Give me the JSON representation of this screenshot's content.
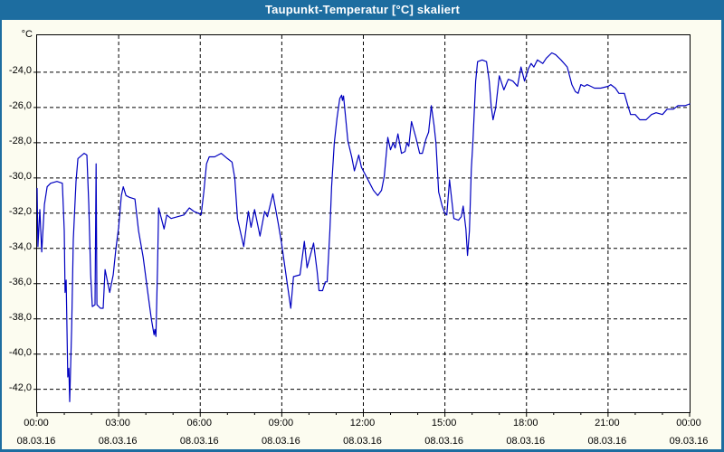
{
  "window": {
    "title": "Taupunkt-Temperatur [°C] skaliert"
  },
  "colors": {
    "titlebar_bg": "#1d6da0",
    "titlebar_text": "#ffffff",
    "window_bg": "#fcfcf0",
    "plot_bg": "#ffffff",
    "line": "#0000c0",
    "grid": "#000000",
    "axis": "#000000"
  },
  "chart_data": {
    "type": "line",
    "title": "Taupunkt-Temperatur [°C] skaliert",
    "grid": "dashed",
    "legend": "none",
    "y_axis": {
      "unit_label": "°C",
      "ylim": [
        -43.3,
        -21.9
      ],
      "ticks": [
        {
          "label": "-24,0",
          "value": -24
        },
        {
          "label": "-26,0",
          "value": -26
        },
        {
          "label": "-28,0",
          "value": -28
        },
        {
          "label": "-30,0",
          "value": -30
        },
        {
          "label": "-32,0",
          "value": -32
        },
        {
          "label": "-34,0",
          "value": -34
        },
        {
          "label": "-36,0",
          "value": -36
        },
        {
          "label": "-38,0",
          "value": -38
        },
        {
          "label": "-40,0",
          "value": -40
        },
        {
          "label": "-42,0",
          "value": -42
        }
      ]
    },
    "x_axis": {
      "hours_span": 24,
      "major_tick_hours": 3,
      "minor_tick_hours": 1,
      "ticks": [
        {
          "hour": 0,
          "time": "00:00",
          "date": "08.03.16"
        },
        {
          "hour": 3,
          "time": "03:00",
          "date": "08.03.16"
        },
        {
          "hour": 6,
          "time": "06:00",
          "date": "08.03.16"
        },
        {
          "hour": 9,
          "time": "09:00",
          "date": "08.03.16"
        },
        {
          "hour": 12,
          "time": "12:00",
          "date": "08.03.16"
        },
        {
          "hour": 15,
          "time": "15:00",
          "date": "08.03.16"
        },
        {
          "hour": 18,
          "time": "18:00",
          "date": "08.03.16"
        },
        {
          "hour": 21,
          "time": "21:00",
          "date": "08.03.16"
        },
        {
          "hour": 24,
          "time": "00:00",
          "date": "09.03.16"
        }
      ]
    },
    "series": [
      {
        "name": "Taupunkt-Temperatur",
        "color": "#0000c0",
        "points": [
          [
            0,
            -30.6
          ],
          [
            0.03,
            -33.9
          ],
          [
            0.1,
            -31.8
          ],
          [
            0.17,
            -34.2
          ],
          [
            0.27,
            -31.5
          ],
          [
            0.37,
            -30.5
          ],
          [
            0.5,
            -30.3
          ],
          [
            0.73,
            -30.2
          ],
          [
            0.93,
            -30.3
          ],
          [
            1.0,
            -33.0
          ],
          [
            1.03,
            -36.5
          ],
          [
            1.07,
            -35.8
          ],
          [
            1.13,
            -41.3
          ],
          [
            1.17,
            -40.8
          ],
          [
            1.2,
            -42.7
          ],
          [
            1.27,
            -38.5
          ],
          [
            1.33,
            -33.5
          ],
          [
            1.43,
            -30.2
          ],
          [
            1.5,
            -28.9
          ],
          [
            1.73,
            -28.6
          ],
          [
            1.83,
            -28.7
          ],
          [
            1.9,
            -31.5
          ],
          [
            1.97,
            -35.5
          ],
          [
            2.03,
            -37.3
          ],
          [
            2.13,
            -37.2
          ],
          [
            2.17,
            -29.2
          ],
          [
            2.2,
            -37.2
          ],
          [
            2.33,
            -37.4
          ],
          [
            2.43,
            -37.4
          ],
          [
            2.5,
            -35.2
          ],
          [
            2.67,
            -36.5
          ],
          [
            2.8,
            -35.5
          ],
          [
            2.9,
            -34.0
          ],
          [
            3.0,
            -32.8
          ],
          [
            3.1,
            -31.0
          ],
          [
            3.17,
            -30.5
          ],
          [
            3.27,
            -31.0
          ],
          [
            3.4,
            -31.1
          ],
          [
            3.6,
            -31.2
          ],
          [
            3.73,
            -33.0
          ],
          [
            3.9,
            -34.5
          ],
          [
            4.07,
            -36.5
          ],
          [
            4.2,
            -38.0
          ],
          [
            4.3,
            -38.9
          ],
          [
            4.33,
            -38.6
          ],
          [
            4.37,
            -39.0
          ],
          [
            4.43,
            -35.0
          ],
          [
            4.47,
            -31.7
          ],
          [
            4.57,
            -32.3
          ],
          [
            4.67,
            -32.9
          ],
          [
            4.77,
            -32.1
          ],
          [
            4.93,
            -32.3
          ],
          [
            5.17,
            -32.2
          ],
          [
            5.4,
            -32.1
          ],
          [
            5.6,
            -31.7
          ],
          [
            5.77,
            -31.9
          ],
          [
            5.93,
            -32.0
          ],
          [
            6.03,
            -32.1
          ],
          [
            6.13,
            -30.8
          ],
          [
            6.23,
            -29.2
          ],
          [
            6.33,
            -28.8
          ],
          [
            6.53,
            -28.8
          ],
          [
            6.77,
            -28.6
          ],
          [
            7.0,
            -28.9
          ],
          [
            7.17,
            -29.1
          ],
          [
            7.27,
            -30.0
          ],
          [
            7.37,
            -32.3
          ],
          [
            7.47,
            -33.0
          ],
          [
            7.6,
            -33.9
          ],
          [
            7.77,
            -31.9
          ],
          [
            7.87,
            -32.8
          ],
          [
            8.0,
            -31.8
          ],
          [
            8.2,
            -33.3
          ],
          [
            8.37,
            -31.9
          ],
          [
            8.47,
            -32.2
          ],
          [
            8.67,
            -30.9
          ],
          [
            8.87,
            -32.6
          ],
          [
            9.0,
            -33.8
          ],
          [
            9.2,
            -36.0
          ],
          [
            9.33,
            -37.4
          ],
          [
            9.43,
            -35.6
          ],
          [
            9.67,
            -35.5
          ],
          [
            9.83,
            -33.6
          ],
          [
            9.93,
            -35.1
          ],
          [
            10.17,
            -33.7
          ],
          [
            10.3,
            -35.3
          ],
          [
            10.37,
            -36.4
          ],
          [
            10.5,
            -36.4
          ],
          [
            10.6,
            -35.9
          ],
          [
            10.67,
            -35.9
          ],
          [
            10.77,
            -33.0
          ],
          [
            10.83,
            -30.5
          ],
          [
            10.93,
            -28.0
          ],
          [
            11.03,
            -26.6
          ],
          [
            11.13,
            -25.5
          ],
          [
            11.2,
            -25.3
          ],
          [
            11.23,
            -25.6
          ],
          [
            11.27,
            -25.35
          ],
          [
            11.43,
            -27.9
          ],
          [
            11.57,
            -28.8
          ],
          [
            11.67,
            -29.6
          ],
          [
            11.83,
            -28.7
          ],
          [
            11.93,
            -29.4
          ],
          [
            12.17,
            -30.1
          ],
          [
            12.37,
            -30.7
          ],
          [
            12.53,
            -31.0
          ],
          [
            12.67,
            -30.7
          ],
          [
            12.77,
            -29.9
          ],
          [
            12.9,
            -27.7
          ],
          [
            13.0,
            -28.4
          ],
          [
            13.1,
            -28.0
          ],
          [
            13.17,
            -28.3
          ],
          [
            13.27,
            -27.5
          ],
          [
            13.4,
            -28.6
          ],
          [
            13.53,
            -28.5
          ],
          [
            13.6,
            -28.0
          ],
          [
            13.67,
            -28.2
          ],
          [
            13.77,
            -26.8
          ],
          [
            13.93,
            -27.7
          ],
          [
            14.07,
            -28.6
          ],
          [
            14.17,
            -28.6
          ],
          [
            14.3,
            -27.8
          ],
          [
            14.4,
            -27.4
          ],
          [
            14.5,
            -25.9
          ],
          [
            14.6,
            -27.0
          ],
          [
            14.67,
            -28.0
          ],
          [
            14.77,
            -30.8
          ],
          [
            14.9,
            -31.6
          ],
          [
            15.0,
            -32.0
          ],
          [
            15.07,
            -32.1
          ],
          [
            15.17,
            -30.1
          ],
          [
            15.27,
            -31.5
          ],
          [
            15.33,
            -32.3
          ],
          [
            15.5,
            -32.4
          ],
          [
            15.6,
            -32.2
          ],
          [
            15.67,
            -31.6
          ],
          [
            15.77,
            -32.9
          ],
          [
            15.83,
            -34.4
          ],
          [
            15.9,
            -33.0
          ],
          [
            15.97,
            -29.5
          ],
          [
            16.03,
            -27.9
          ],
          [
            16.13,
            -24.5
          ],
          [
            16.2,
            -23.4
          ],
          [
            16.37,
            -23.3
          ],
          [
            16.53,
            -23.4
          ],
          [
            16.63,
            -24.5
          ],
          [
            16.7,
            -25.9
          ],
          [
            16.77,
            -26.7
          ],
          [
            16.87,
            -26.0
          ],
          [
            17.0,
            -24.2
          ],
          [
            17.17,
            -25.0
          ],
          [
            17.33,
            -24.4
          ],
          [
            17.5,
            -24.5
          ],
          [
            17.67,
            -24.8
          ],
          [
            17.8,
            -23.7
          ],
          [
            17.93,
            -24.5
          ],
          [
            18.07,
            -23.8
          ],
          [
            18.17,
            -23.5
          ],
          [
            18.27,
            -23.7
          ],
          [
            18.4,
            -23.3
          ],
          [
            18.5,
            -23.4
          ],
          [
            18.6,
            -23.5
          ],
          [
            18.73,
            -23.2
          ],
          [
            18.93,
            -22.9
          ],
          [
            19.07,
            -23.0
          ],
          [
            19.27,
            -23.3
          ],
          [
            19.5,
            -23.7
          ],
          [
            19.67,
            -24.7
          ],
          [
            19.8,
            -25.1
          ],
          [
            19.9,
            -25.2
          ],
          [
            20.0,
            -24.7
          ],
          [
            20.13,
            -24.8
          ],
          [
            20.23,
            -24.7
          ],
          [
            20.37,
            -24.8
          ],
          [
            20.5,
            -24.9
          ],
          [
            20.73,
            -24.9
          ],
          [
            21.0,
            -24.8
          ],
          [
            21.1,
            -24.7
          ],
          [
            21.27,
            -24.9
          ],
          [
            21.4,
            -25.2
          ],
          [
            21.6,
            -25.2
          ],
          [
            21.73,
            -25.9
          ],
          [
            21.83,
            -26.4
          ],
          [
            22.0,
            -26.4
          ],
          [
            22.17,
            -26.7
          ],
          [
            22.4,
            -26.7
          ],
          [
            22.6,
            -26.4
          ],
          [
            22.77,
            -26.3
          ],
          [
            23.0,
            -26.4
          ],
          [
            23.17,
            -26.1
          ],
          [
            23.4,
            -26.1
          ],
          [
            23.57,
            -25.9
          ],
          [
            23.83,
            -25.9
          ],
          [
            24.0,
            -25.8
          ]
        ]
      }
    ]
  }
}
